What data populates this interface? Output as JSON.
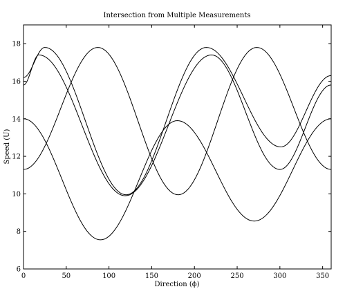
{
  "chart_data": {
    "type": "line",
    "title": "Intersection from Multiple Measurements",
    "xlabel": "Direction (ϕ)",
    "ylabel": "Speed (U)",
    "xlim": [
      0,
      360
    ],
    "ylim": [
      6,
      19
    ],
    "xticks": [
      0,
      50,
      100,
      150,
      200,
      250,
      300,
      350
    ],
    "yticks": [
      6,
      8,
      10,
      12,
      14,
      16,
      18
    ],
    "grid": false,
    "legend": "none",
    "line_color": "#000000",
    "series": [
      {
        "x": [
          0,
          90,
          180,
          270,
          360
        ],
        "y": [
          14.0,
          7.55,
          13.9,
          8.55,
          14.0
        ]
      },
      {
        "x": [
          0,
          25,
          120,
          214,
          301,
          360
        ],
        "y": [
          16.2,
          17.8,
          9.95,
          17.8,
          12.5,
          16.3
        ]
      },
      {
        "x": [
          0,
          18,
          119,
          220,
          300,
          360
        ],
        "y": [
          15.8,
          17.4,
          9.9,
          17.4,
          11.3,
          15.8
        ]
      },
      {
        "x": [
          0,
          87,
          181,
          273,
          360
        ],
        "y": [
          11.3,
          17.8,
          9.95,
          17.8,
          11.3
        ]
      }
    ]
  }
}
